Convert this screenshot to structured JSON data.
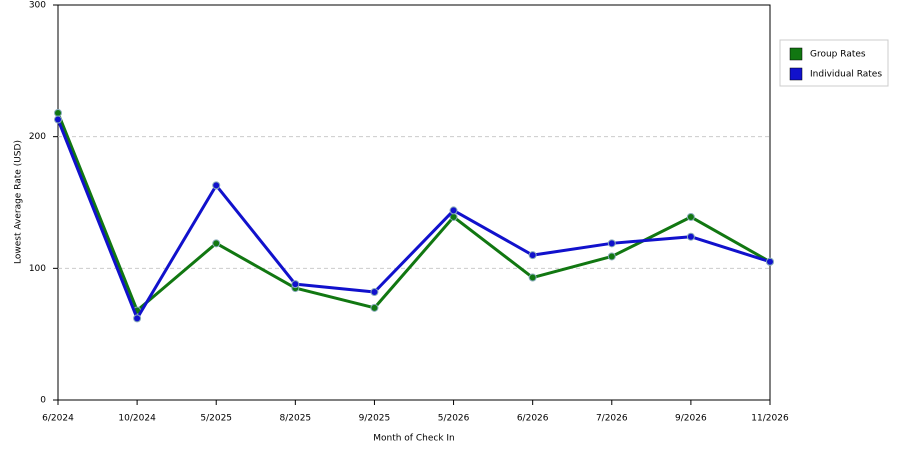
{
  "chart_data": {
    "type": "line",
    "x_label": "Month of Check In",
    "y_label": "Lowest Average Rate (USD)",
    "categories": [
      "6/2024",
      "10/2024",
      "5/2025",
      "8/2025",
      "9/2025",
      "5/2026",
      "6/2026",
      "7/2026",
      "9/2026",
      "11/2026"
    ],
    "series": [
      {
        "name": "Group Rates",
        "color": "#117711",
        "values": [
          218,
          68,
          119,
          85,
          70,
          139,
          93,
          109,
          139,
          105
        ]
      },
      {
        "name": "Individual Rates",
        "color": "#1111cc",
        "values": [
          213,
          62,
          163,
          88,
          82,
          144,
          110,
          119,
          124,
          105
        ]
      }
    ],
    "ylim": [
      0,
      300
    ],
    "yticks": [
      0,
      100,
      200,
      300
    ],
    "grid": true,
    "legend": "right"
  }
}
